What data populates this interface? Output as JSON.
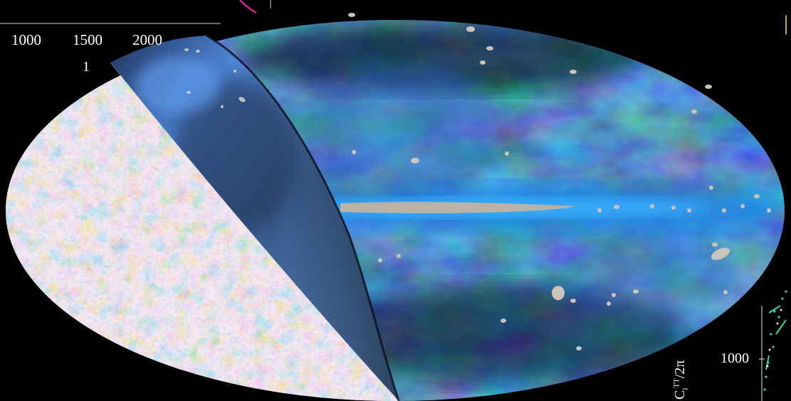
{
  "overlay_plot_top": {
    "x_tick_labels": [
      "1000",
      "1500",
      "2000"
    ],
    "small_label": "1"
  },
  "overlay_plot_right": {
    "y_tick_label": "1000",
    "y_axis_label_base": "C",
    "y_axis_label_sup": "TT",
    "y_axis_label_sub": "l",
    "y_axis_label_tail": "/2π"
  },
  "colors": {
    "background": "#000000",
    "cmb_warm": "#e98a2c",
    "cmb_cool": "#2e6fd6",
    "galaxy_blue": "#2a78d8",
    "galactic_plane": "#b9b2a6",
    "accent_yellow": "#f4e312",
    "curve_magenta": "#d0249c"
  }
}
